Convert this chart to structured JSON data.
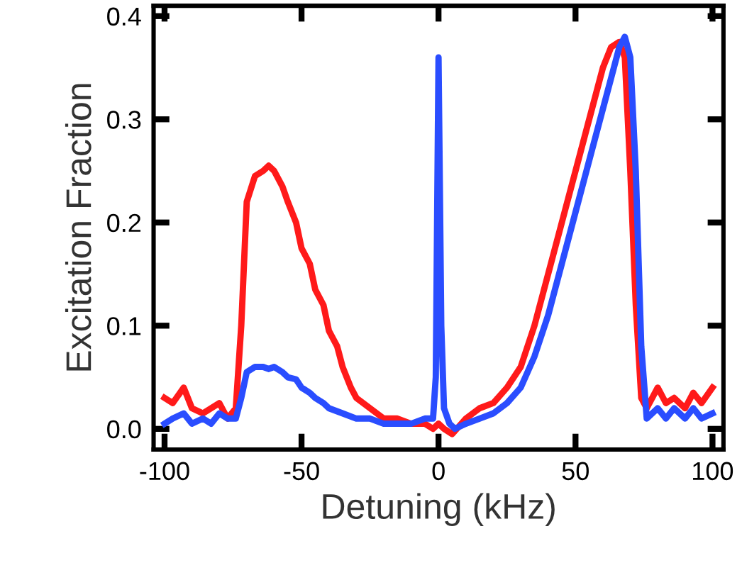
{
  "chart_data": {
    "type": "line",
    "xlabel": "Detuning (kHz)",
    "ylabel": "Excitation Fraction",
    "xlim": [
      -104,
      104
    ],
    "ylim": [
      -0.02,
      0.41
    ],
    "xticks": [
      -100,
      -50,
      0,
      50,
      100
    ],
    "yticks": [
      {
        "value": 0,
        "label": "0.0"
      },
      0.1,
      0.2,
      0.3,
      0.4
    ],
    "grid": false,
    "legend": false,
    "marker": "none",
    "line_style": "solid",
    "series": [
      {
        "color": "#ff1a1a",
        "x": [
          -100,
          -97,
          -93,
          -90,
          -86,
          -83,
          -80,
          -77,
          -74,
          -72,
          -70,
          -67,
          -64,
          -62,
          -60,
          -57,
          -55,
          -52,
          -50,
          -47,
          -45,
          -42,
          -40,
          -37,
          -35,
          -32,
          -30,
          -25,
          -20,
          -15,
          -10,
          -5,
          -2,
          0,
          2,
          5,
          10,
          15,
          20,
          25,
          30,
          35,
          40,
          45,
          50,
          55,
          60,
          63,
          66,
          68,
          70,
          72,
          74,
          76,
          80,
          83,
          86,
          90,
          93,
          96,
          100
        ],
        "values": [
          0.03,
          0.025,
          0.04,
          0.02,
          0.015,
          0.02,
          0.025,
          0.01,
          0.02,
          0.1,
          0.22,
          0.245,
          0.25,
          0.255,
          0.25,
          0.235,
          0.22,
          0.2,
          0.175,
          0.16,
          0.135,
          0.12,
          0.095,
          0.08,
          0.06,
          0.04,
          0.03,
          0.02,
          0.01,
          0.01,
          0.005,
          0.005,
          0.0,
          0.005,
          0.0,
          -0.005,
          0.01,
          0.02,
          0.025,
          0.04,
          0.06,
          0.1,
          0.15,
          0.2,
          0.25,
          0.3,
          0.35,
          0.37,
          0.375,
          0.36,
          0.25,
          0.12,
          0.03,
          0.02,
          0.04,
          0.025,
          0.03,
          0.02,
          0.035,
          0.025,
          0.04
        ]
      },
      {
        "color": "#2a4dff",
        "x": [
          -100,
          -97,
          -93,
          -90,
          -86,
          -83,
          -80,
          -77,
          -74,
          -72,
          -70,
          -67,
          -64,
          -62,
          -60,
          -57,
          -55,
          -52,
          -50,
          -47,
          -45,
          -42,
          -40,
          -35,
          -30,
          -25,
          -20,
          -15,
          -10,
          -5,
          -2,
          -1,
          0,
          1,
          2,
          4,
          6,
          10,
          15,
          20,
          25,
          30,
          35,
          40,
          45,
          50,
          55,
          60,
          63,
          66,
          68,
          70,
          72,
          74,
          76,
          80,
          83,
          86,
          90,
          93,
          96,
          100
        ],
        "values": [
          0.005,
          0.01,
          0.015,
          0.005,
          0.01,
          0.005,
          0.015,
          0.01,
          0.01,
          0.03,
          0.055,
          0.06,
          0.06,
          0.058,
          0.06,
          0.055,
          0.05,
          0.048,
          0.04,
          0.035,
          0.03,
          0.025,
          0.02,
          0.015,
          0.01,
          0.01,
          0.005,
          0.005,
          0.005,
          0.01,
          0.01,
          0.05,
          0.36,
          0.1,
          0.02,
          0.005,
          0.0,
          0.005,
          0.01,
          0.015,
          0.025,
          0.04,
          0.07,
          0.11,
          0.16,
          0.21,
          0.26,
          0.31,
          0.34,
          0.37,
          0.38,
          0.36,
          0.25,
          0.08,
          0.01,
          0.02,
          0.01,
          0.02,
          0.01,
          0.02,
          0.01,
          0.015
        ]
      }
    ]
  }
}
